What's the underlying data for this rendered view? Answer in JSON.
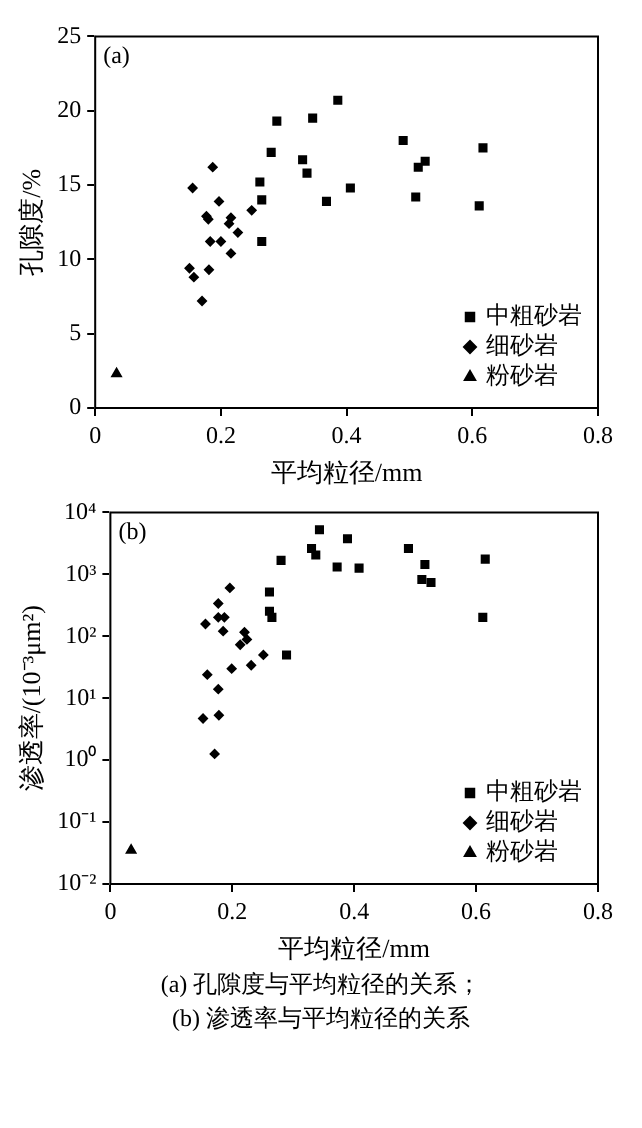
{
  "chart_data": [
    {
      "type": "scatter",
      "annotations": [
        "(a)"
      ],
      "xlabel": "平均粒径/mm",
      "ylabel": "孔隙度/%",
      "xlim": [
        0,
        0.8
      ],
      "xticks": [
        0,
        0.2,
        0.4,
        0.6,
        0.8
      ],
      "ylim": [
        0,
        25
      ],
      "yticks": [
        0,
        5,
        10,
        15,
        20,
        25
      ],
      "grid": false,
      "legend": "bottom right",
      "series": [
        {
          "name": "中粗砂岩",
          "color": "#000000",
          "marker": "square",
          "x": [
            0.262,
            0.265,
            0.265,
            0.28,
            0.289,
            0.33,
            0.337,
            0.346,
            0.368,
            0.386,
            0.406,
            0.49,
            0.51,
            0.514,
            0.525,
            0.611,
            0.617
          ],
          "values": [
            15.2,
            14.0,
            11.2,
            17.2,
            19.3,
            16.7,
            15.8,
            19.5,
            13.9,
            20.7,
            14.8,
            18.0,
            14.2,
            16.2,
            16.6,
            13.6,
            17.5
          ]
        },
        {
          "name": "细砂岩",
          "color": "#000000",
          "marker": "diamond",
          "x": [
            0.155,
            0.187,
            0.197,
            0.177,
            0.18,
            0.216,
            0.213,
            0.249,
            0.227,
            0.183,
            0.2,
            0.216,
            0.15,
            0.181,
            0.157,
            0.17
          ],
          "values": [
            14.8,
            16.2,
            13.9,
            12.9,
            12.7,
            12.8,
            12.4,
            13.3,
            11.8,
            11.2,
            11.2,
            10.4,
            9.4,
            9.3,
            8.8,
            7.2
          ]
        },
        {
          "name": "粉砂岩",
          "color": "#000000",
          "marker": "triangle",
          "x": [
            0.034
          ],
          "values": [
            2.3
          ]
        }
      ]
    },
    {
      "type": "scatter",
      "annotations": [
        "(b)",
        "(a) 孔隙度与平均粒径的关系；",
        "(b) 渗透率与平均粒径的关系"
      ],
      "xlabel": "平均粒径/mm",
      "ylabel": "渗透率/(10⁻³μm²)",
      "log": "y",
      "xlim": [
        0,
        0.8
      ],
      "xticks": [
        0,
        0.2,
        0.4,
        0.6,
        0.8
      ],
      "ylim": [
        0.01,
        10000
      ],
      "yticks": [
        {
          "value": 0.01,
          "label": "10⁻²"
        },
        {
          "value": 0.1,
          "label": "10⁻¹"
        },
        {
          "value": 1,
          "label": "10⁰"
        },
        {
          "value": 10,
          "label": "10¹"
        },
        {
          "value": 100,
          "label": "10²"
        },
        {
          "value": 1000,
          "label": "10³"
        },
        {
          "value": 10000,
          "label": "10⁴"
        }
      ],
      "grid": false,
      "legend": "bottom right",
      "series": [
        {
          "name": "中粗砂岩",
          "color": "#000000",
          "marker": "square",
          "x": [
            0.33,
            0.337,
            0.343,
            0.389,
            0.372,
            0.408,
            0.28,
            0.261,
            0.261,
            0.265,
            0.289,
            0.489,
            0.516,
            0.511,
            0.526,
            0.615,
            0.611
          ],
          "values": [
            2620,
            2050,
            5230,
            3750,
            1310,
            1260,
            1680,
            517,
            253,
            202,
            50,
            2620,
            1440,
            824,
            736,
            1760,
            202
          ]
        },
        {
          "name": "细砂岩",
          "color": "#000000",
          "marker": "diamond",
          "x": [
            0.196,
            0.177,
            0.156,
            0.177,
            0.187,
            0.185,
            0.22,
            0.224,
            0.213,
            0.251,
            0.199,
            0.231,
            0.159,
            0.177,
            0.178,
            0.152,
            0.171
          ],
          "values": [
            603,
            338,
            158,
            202,
            202,
            121,
            116,
            89,
            73,
            50,
            30,
            34,
            24,
            14,
            5.3,
            4.7,
            1.26
          ]
        },
        {
          "name": "粉砂岩",
          "color": "#000000",
          "marker": "triangle",
          "x": [
            0.034
          ],
          "values": [
            0.035
          ]
        }
      ]
    }
  ]
}
